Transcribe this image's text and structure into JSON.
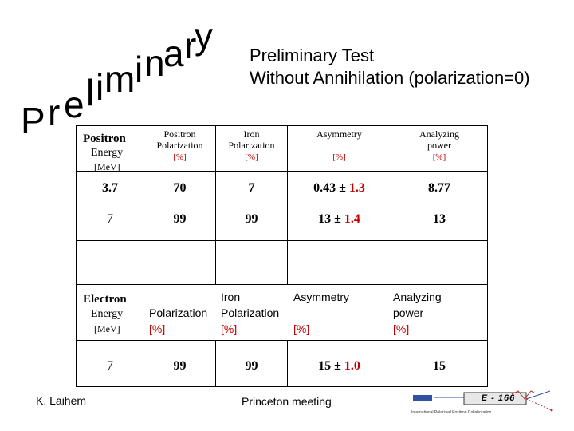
{
  "watermark": {
    "letters": [
      "P",
      "r",
      "e",
      "l",
      "i",
      "m",
      "i",
      "n",
      "a",
      "r",
      "y"
    ]
  },
  "title": {
    "line1": "Preliminary Test",
    "line2": "Without Annihilation (polarization=0)"
  },
  "positron_table": {
    "headers": {
      "energy_bold": "Positron",
      "energy_label": "Energy",
      "energy_unit": "[MeV]",
      "polarization_1": "Positron",
      "polarization_2": "Polarization",
      "polarization_unit": "[%]",
      "iron_1": "Iron",
      "iron_2": "Polarization",
      "iron_unit": "[%]",
      "asymmetry": "Asymmetry",
      "asymmetry_unit": "[%]",
      "analyzing_1": "Analyzing",
      "analyzing_2": "power",
      "analyzing_unit": "[%]"
    },
    "rows": [
      {
        "energy": "3.7",
        "positron_pol": "70",
        "iron_pol": "7",
        "asym_value": "0.43",
        "pm": "±",
        "asym_error": "1.3",
        "analyzing_power": "8.77"
      },
      {
        "energy": "7",
        "positron_pol": "99",
        "iron_pol": "99",
        "asym_value": "13",
        "pm": "±",
        "asym_error": "1.4",
        "analyzing_power": "13"
      }
    ]
  },
  "electron_table": {
    "headers": {
      "energy_bold": "Electron",
      "energy_label": "Energy",
      "energy_unit": "[MeV]",
      "polarization": "Polarization",
      "polarization_unit": "[%]",
      "iron_1": "Iron",
      "iron_2": "Polarization",
      "iron_unit": "[%]",
      "asymmetry": "Asymmetry",
      "asymmetry_unit": "[%]",
      "analyzing_1": "Analyzing",
      "analyzing_2": "power",
      "analyzing_unit": "[%]"
    },
    "rows": [
      {
        "energy": "7",
        "electron_pol": "99",
        "iron_pol": "99",
        "asym_value": "15",
        "pm": "±",
        "asym_error": "1.0",
        "analyzing_power": "15"
      }
    ]
  },
  "footer": {
    "author": "K. Laihem",
    "meeting": "Princeton meeting",
    "logo_text": "E - 166",
    "logo_caption": "International Polarized Positron Collaboration"
  },
  "colors": {
    "accent_red": "#c00000",
    "text": "#000000"
  }
}
